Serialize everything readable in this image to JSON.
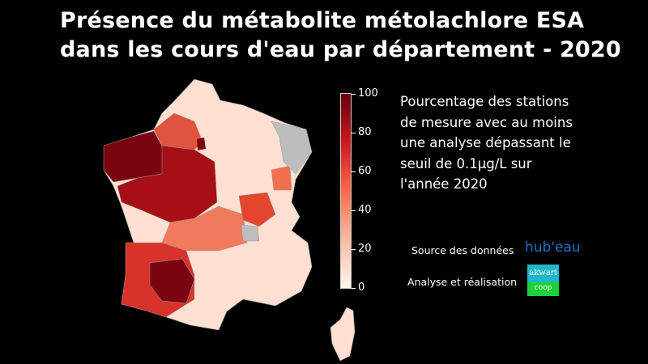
{
  "title_line1": "Présence du métabolite métolachlore ESA",
  "title_line2": "dans les cours d'eau par département - 2020",
  "legend": {
    "description": [
      "Pourcentage des stations",
      "de mesure avec au moins",
      "une analyse dépassant le",
      "seuil de 0.1µg/L sur",
      "l'année 2020"
    ],
    "ticks": [
      "100",
      "80",
      "60",
      "40",
      "20",
      "0"
    ],
    "range": [
      0,
      100
    ],
    "colormap": [
      "#fff5f0",
      "#fcbba1",
      "#fb6a4a",
      "#cb181d",
      "#67000d"
    ],
    "no_data_color": "#bdbdbd"
  },
  "credits": {
    "source_label": "Source des données",
    "source_logo": "hub'eau",
    "analysis_label": "Analyse et réalisation",
    "analysis_logo_top": "akwari",
    "analysis_logo_bottom": "coop"
  }
}
